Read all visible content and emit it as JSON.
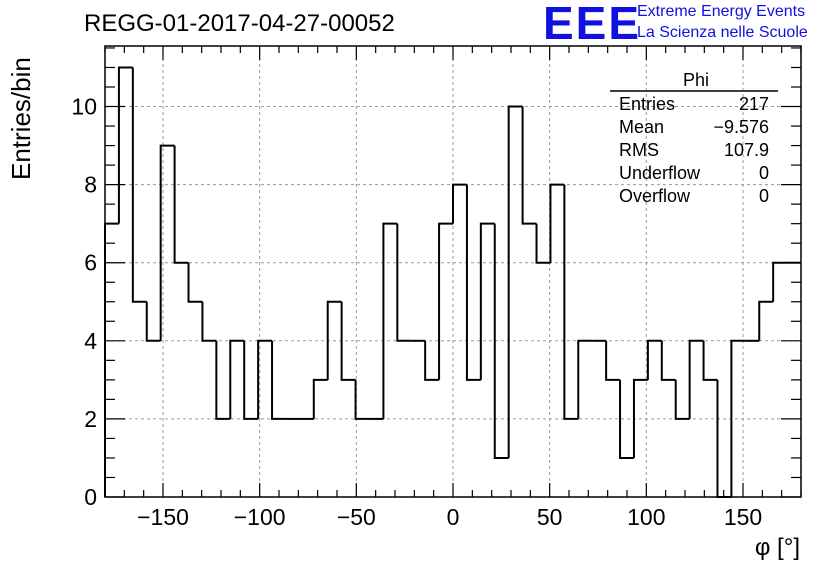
{
  "chart_data": {
    "type": "histogram",
    "title": "REGG-01-2017-04-27-00052",
    "xlabel": "φ [°]",
    "ylabel": "Entries/bin",
    "xlim": [
      -180,
      180
    ],
    "ylim": [
      0,
      11.55
    ],
    "grid": true,
    "bin_width": 7.2,
    "x_ticks": [
      -150,
      -100,
      -50,
      0,
      50,
      100,
      150
    ],
    "x_tick_labels": [
      "−150",
      "−100",
      "−50",
      "0",
      "50",
      "100",
      "150"
    ],
    "y_ticks": [
      0,
      2,
      4,
      6,
      8,
      10
    ],
    "y_tick_labels": [
      "0",
      "2",
      "4",
      "6",
      "8",
      "10"
    ],
    "values": [
      7,
      11,
      5,
      4,
      9,
      6,
      5,
      4,
      2,
      4,
      2,
      4,
      2,
      2,
      2,
      3,
      5,
      3,
      2,
      2,
      7,
      4,
      4,
      3,
      7,
      8,
      3,
      7,
      1,
      10,
      7,
      6,
      8,
      2,
      4,
      4,
      3,
      1,
      3,
      4,
      3,
      2,
      4,
      3,
      0,
      4,
      4,
      5,
      6,
      6
    ],
    "stats_box": {
      "name": "Phi",
      "rows": [
        {
          "label": "Entries",
          "value": "217"
        },
        {
          "label": "Mean",
          "value": "−9.576"
        },
        {
          "label": "RMS",
          "value": "107.9"
        },
        {
          "label": "Underflow",
          "value": "0"
        },
        {
          "label": "Overflow",
          "value": "0"
        }
      ]
    }
  },
  "logo": {
    "mark": "EEE",
    "line1": "Extreme Energy Events",
    "line2": "La Scienza nelle Scuole",
    "color": "#1010e0"
  }
}
